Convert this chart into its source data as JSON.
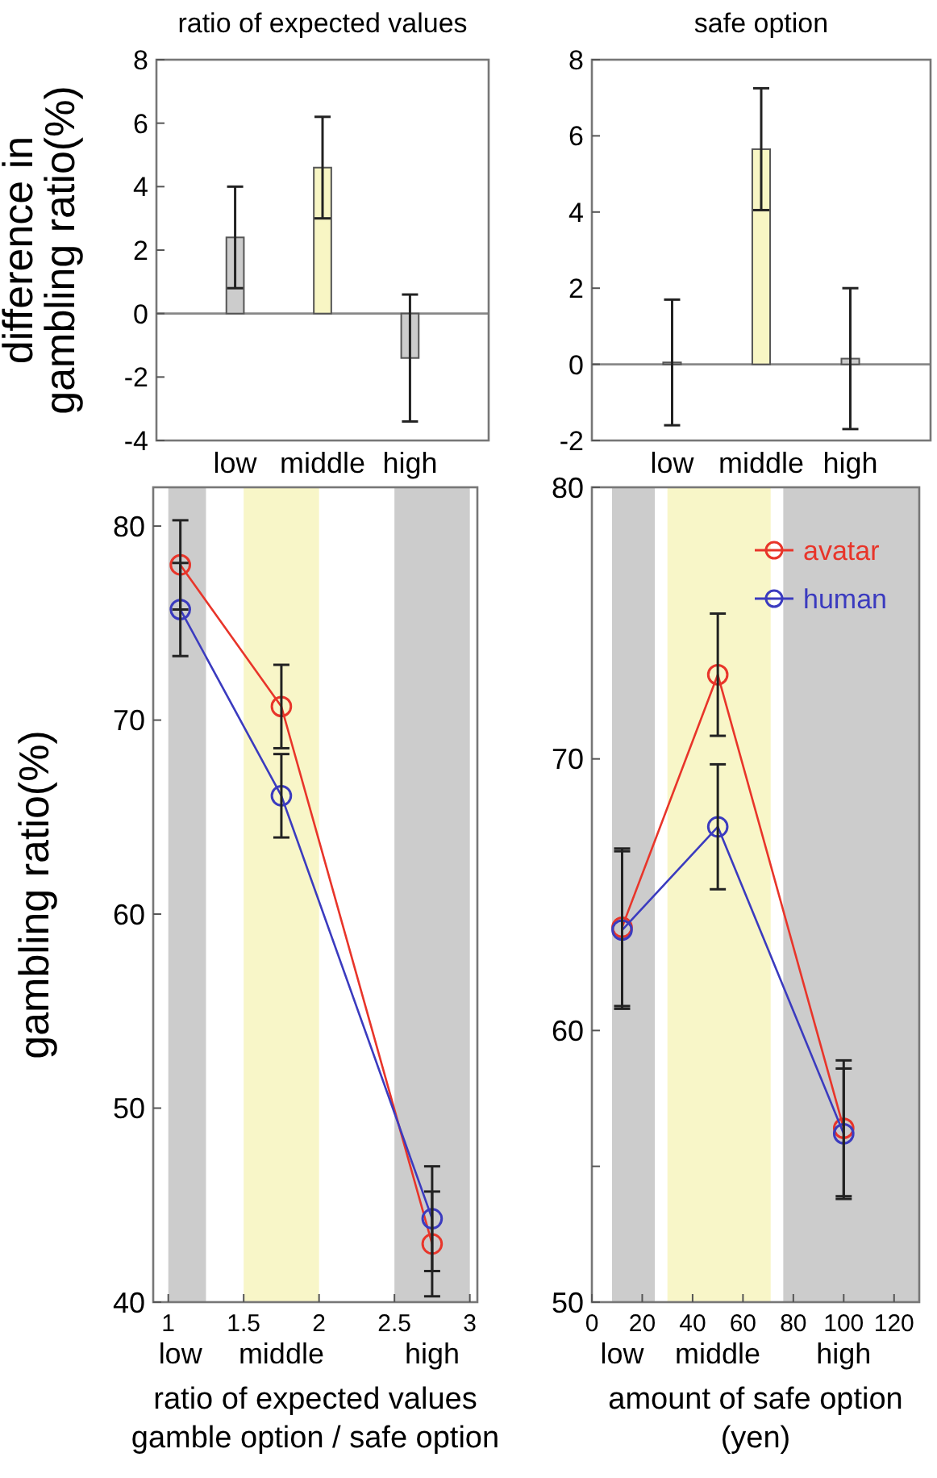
{
  "chart_data": [
    {
      "type": "bar",
      "title": "ratio of expected values",
      "ylabel": "difference in\ngambling ratio(%)",
      "categories": [
        "low",
        "middle",
        "high"
      ],
      "values": [
        2.4,
        4.6,
        -1.4
      ],
      "errors": [
        1.6,
        1.6,
        2.0
      ],
      "colors": [
        "#cccccc",
        "#f8f6c4",
        "#cccccc"
      ],
      "ylim": [
        -4,
        8
      ],
      "yticks": [
        -4,
        -2,
        0,
        2,
        4,
        6,
        8
      ],
      "ref_lines": [
        {
          "axis": "y",
          "value": 0,
          "color": "#888888"
        }
      ],
      "grid": false,
      "legend": false
    },
    {
      "type": "bar",
      "title": "safe option",
      "categories": [
        "low",
        "middle",
        "high"
      ],
      "values": [
        0.05,
        5.65,
        0.15
      ],
      "errors": [
        1.65,
        1.6,
        1.85
      ],
      "colors": [
        "#cccccc",
        "#f8f6c4",
        "#cccccc"
      ],
      "ylim": [
        -2,
        8
      ],
      "yticks": [
        -2,
        0,
        2,
        4,
        6,
        8
      ],
      "ref_lines": [
        {
          "axis": "y",
          "value": 0,
          "color": "#888888"
        }
      ],
      "grid": false,
      "legend": false
    },
    {
      "type": "line",
      "ylabel": "gambling ratio(%)",
      "xlabel": "ratio of expected values\ngamble option / safe option",
      "x": [
        1.08,
        1.75,
        2.75
      ],
      "series": [
        {
          "color": "#e8352a",
          "values": [
            78.0,
            70.7,
            43.0
          ],
          "errors": [
            2.3,
            2.15,
            2.7
          ]
        },
        {
          "color": "#3b3bbf",
          "values": [
            75.7,
            66.1,
            44.3
          ],
          "errors": [
            2.4,
            2.15,
            2.7
          ]
        }
      ],
      "xlim": [
        0.9,
        3.05
      ],
      "xticks": [
        1,
        1.5,
        2,
        2.5,
        3
      ],
      "ylim": [
        40,
        82
      ],
      "yticks": [
        40,
        50,
        60,
        70,
        80
      ],
      "bands": [
        {
          "axis": "x",
          "from": 1,
          "to": 1.25,
          "color": "#cccccc"
        },
        {
          "axis": "x",
          "from": 1.5,
          "to": 2,
          "color": "#f8f6c8"
        },
        {
          "axis": "x",
          "from": 2.5,
          "to": 3,
          "color": "#cccccc"
        }
      ],
      "annotations": [
        "low",
        "middle",
        "high"
      ],
      "marker": "circle",
      "grid": false,
      "legend": false
    },
    {
      "type": "line",
      "xlabel": "amount of safe option\n(yen)",
      "x": [
        12,
        50,
        100
      ],
      "series": [
        {
          "name": "avatar",
          "color": "#e8352a",
          "values": [
            63.8,
            73.1,
            56.4
          ],
          "errors": [
            2.9,
            2.25,
            2.5
          ]
        },
        {
          "name": "human",
          "color": "#3b3bbf",
          "values": [
            63.7,
            67.5,
            56.2
          ],
          "errors": [
            2.9,
            2.3,
            2.4
          ]
        }
      ],
      "xlim": [
        0,
        130
      ],
      "xticks": [
        0,
        20,
        40,
        60,
        80,
        100,
        120
      ],
      "ylim": [
        50,
        80
      ],
      "yticks": [
        50,
        {
          "value": 55,
          "label": null
        },
        60,
        70,
        80
      ],
      "bands": [
        {
          "axis": "x",
          "from": 8,
          "to": 25,
          "color": "#cccccc"
        },
        {
          "axis": "x",
          "from": 30,
          "to": 71,
          "color": "#f8f6c8"
        },
        {
          "axis": "x",
          "from": 76,
          "to": 130,
          "color": "#cccccc"
        }
      ],
      "annotations": [
        "low",
        "middle",
        "high"
      ],
      "marker": "circle",
      "grid": false,
      "legend": "top right"
    }
  ]
}
